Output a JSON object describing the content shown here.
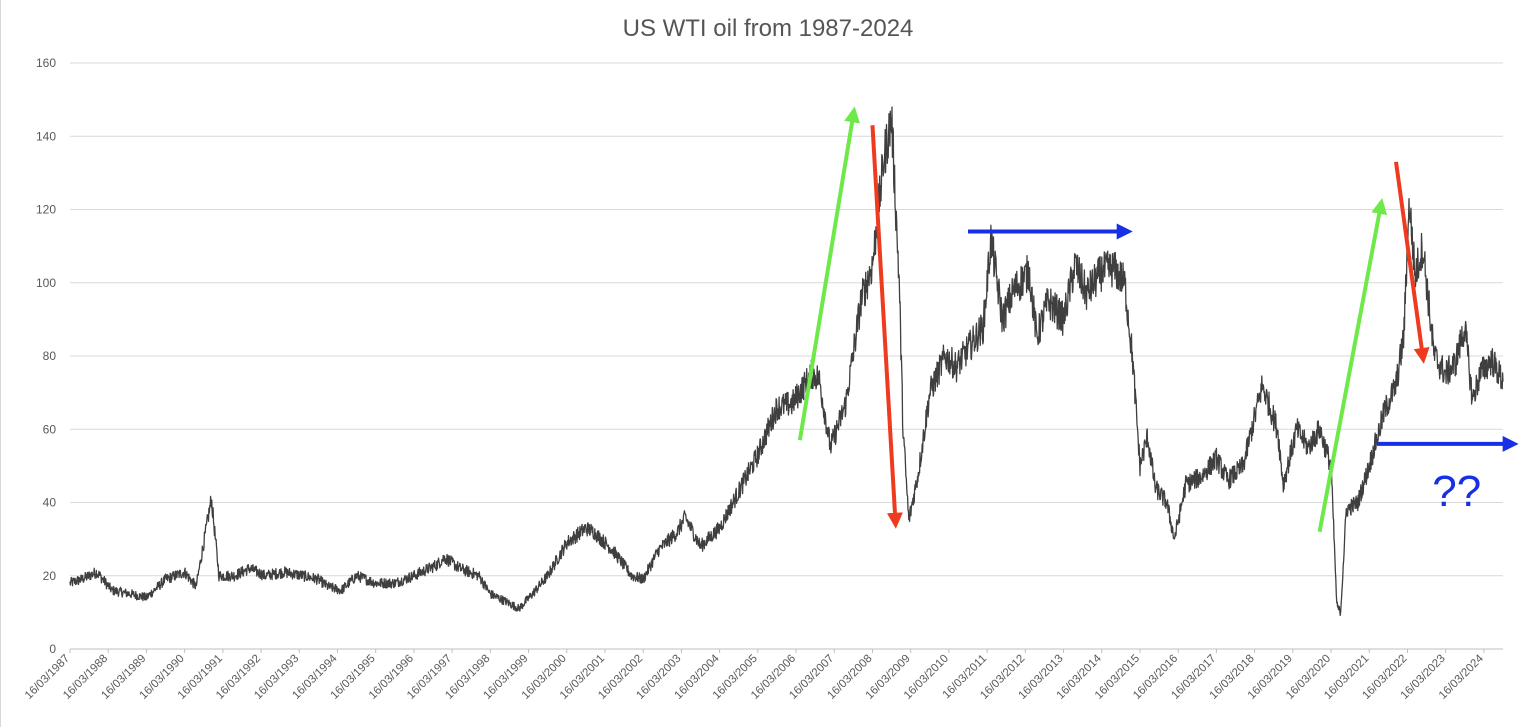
{
  "chart_data": {
    "type": "line",
    "title": "US WTI oil from 1987-2024",
    "xlabel": "",
    "ylabel": "",
    "ylim": [
      0,
      160
    ],
    "yticks": [
      0,
      20,
      40,
      60,
      80,
      100,
      120,
      140,
      160
    ],
    "xlim": [
      1987.2,
      2024.7
    ],
    "grid": "horizontal",
    "xtick_labels": [
      "16/03/1987",
      "16/03/1988",
      "16/03/1989",
      "16/03/1990",
      "16/03/1991",
      "16/03/1992",
      "16/03/1993",
      "16/03/1994",
      "16/03/1995",
      "16/03/1996",
      "16/03/1997",
      "16/03/1998",
      "16/03/1999",
      "16/03/2000",
      "16/03/2001",
      "16/03/2002",
      "16/03/2003",
      "16/03/2004",
      "16/03/2005",
      "16/03/2006",
      "16/03/2007",
      "16/03/2008",
      "16/03/2009",
      "16/03/2010",
      "16/03/2011",
      "16/03/2012",
      "16/03/2013",
      "16/03/2014",
      "16/03/2015",
      "16/03/2016",
      "16/03/2017",
      "16/03/2018",
      "16/03/2019",
      "16/03/2020",
      "16/03/2021",
      "16/03/2022",
      "16/03/2023",
      "16/03/2024"
    ],
    "series": [
      {
        "name": "WTI",
        "color": "#3f3f3f",
        "x": [
          1987.2,
          1987.5,
          1987.9,
          1988.3,
          1988.8,
          1989.2,
          1989.7,
          1990.2,
          1990.5,
          1990.75,
          1990.9,
          1991.1,
          1991.5,
          1991.9,
          1992.3,
          1992.8,
          1993.3,
          1993.7,
          1993.95,
          1994.3,
          1994.7,
          1995.2,
          1995.7,
          1996.2,
          1996.8,
          1997.0,
          1997.4,
          1997.9,
          1998.2,
          1998.6,
          1998.95,
          1999.3,
          1999.7,
          2000.2,
          2000.7,
          2000.9,
          2001.4,
          2001.9,
          2002.2,
          2002.6,
          2003.1,
          2003.3,
          2003.7,
          2004.2,
          2004.8,
          2005.2,
          2005.7,
          2006.1,
          2006.6,
          2006.8,
          2007.1,
          2007.5,
          2007.9,
          2008.2,
          2008.5,
          2008.7,
          2008.9,
          2009.0,
          2009.15,
          2009.4,
          2009.7,
          2010.1,
          2010.4,
          2010.7,
          2011.1,
          2011.3,
          2011.6,
          2011.9,
          2012.3,
          2012.5,
          2012.8,
          2013.2,
          2013.5,
          2013.8,
          2014.2,
          2014.5,
          2014.8,
          2015.0,
          2015.2,
          2015.4,
          2015.6,
          2015.9,
          2016.1,
          2016.4,
          2016.8,
          2017.2,
          2017.5,
          2017.9,
          2018.4,
          2018.8,
          2018.95,
          2019.3,
          2019.6,
          2019.9,
          2020.2,
          2020.3,
          2020.35,
          2020.45,
          2020.6,
          2020.9,
          2021.2,
          2021.6,
          2021.9,
          2022.1,
          2022.25,
          2022.4,
          2022.6,
          2022.9,
          2023.2,
          2023.45,
          2023.7,
          2023.9,
          2024.1,
          2024.4,
          2024.7
        ],
        "values": [
          18,
          19,
          21,
          16,
          15,
          14,
          19,
          21,
          17,
          32,
          41,
          20,
          20,
          22,
          20,
          21,
          20,
          19,
          17,
          16,
          20,
          18,
          18,
          20,
          23,
          25,
          22,
          20,
          15,
          13,
          11,
          15,
          20,
          29,
          33,
          32,
          27,
          20,
          19,
          27,
          32,
          36,
          28,
          33,
          45,
          53,
          66,
          67,
          75,
          74,
          55,
          67,
          95,
          105,
          134,
          145,
          100,
          60,
          35,
          48,
          70,
          80,
          77,
          82,
          88,
          112,
          90,
          98,
          103,
          85,
          95,
          90,
          105,
          97,
          103,
          104,
          100,
          80,
          50,
          58,
          44,
          40,
          30,
          45,
          47,
          52,
          46,
          50,
          72,
          60,
          45,
          60,
          55,
          60,
          50,
          25,
          12,
          10,
          38,
          40,
          50,
          65,
          72,
          85,
          122,
          102,
          110,
          80,
          75,
          78,
          88,
          68,
          75,
          79,
          73
        ]
      }
    ],
    "annotations": [
      {
        "type": "arrow",
        "color": "#6fe84a",
        "from": [
          2006.3,
          57
        ],
        "to": [
          2007.7,
          146
        ]
      },
      {
        "type": "arrow",
        "color": "#ee3a1f",
        "from": [
          2008.2,
          143
        ],
        "to": [
          2008.8,
          35
        ]
      },
      {
        "type": "arrow",
        "color": "#1730e6",
        "from": [
          2010.7,
          114
        ],
        "to": [
          2014.8,
          114
        ]
      },
      {
        "type": "arrow",
        "color": "#6fe84a",
        "from": [
          2019.9,
          32
        ],
        "to": [
          2021.5,
          121
        ]
      },
      {
        "type": "arrow",
        "color": "#ee3a1f",
        "from": [
          2021.9,
          133
        ],
        "to": [
          2022.6,
          80
        ]
      },
      {
        "type": "arrow",
        "color": "#1730e6",
        "from": [
          2021.4,
          56
        ],
        "to": [
          2024.9,
          56
        ]
      },
      {
        "type": "text",
        "color": "#1730e6",
        "text": "??",
        "at": [
          2022.85,
          39
        ]
      }
    ]
  }
}
